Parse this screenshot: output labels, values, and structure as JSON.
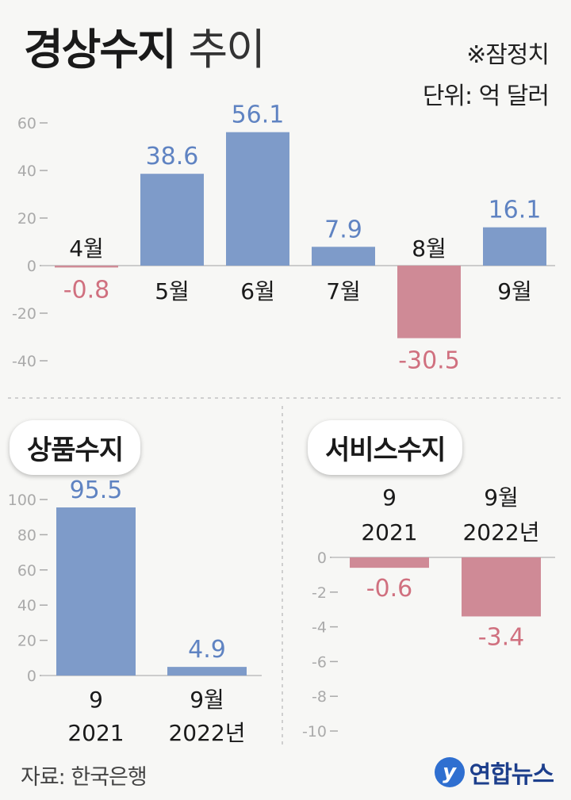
{
  "header": {
    "title_bold": "경상수지",
    "title_light": "추이",
    "note_estimate": "※잠정치",
    "note_unit": "단위: 억 달러"
  },
  "colors": {
    "positive": "#7e9bc9",
    "negative": "#cf8a96",
    "positive_label": "#5f83c2",
    "negative_label": "#d0707f",
    "axis": "#cccccc",
    "tick": "#aaaaaa"
  },
  "panels": {
    "goods_title": "상품수지",
    "services_title": "서비스수지"
  },
  "chart_data": [
    {
      "type": "bar",
      "title": "경상수지 추이",
      "categories": [
        "4월",
        "5월",
        "6월",
        "7월",
        "8월",
        "9월"
      ],
      "values": [
        -0.8,
        38.6,
        56.1,
        7.9,
        -30.5,
        16.1
      ],
      "value_labels": [
        "-0.8",
        "38.6",
        "56.1",
        "7.9",
        "-30.5",
        "16.1"
      ],
      "yticks": [
        "60",
        "40",
        "20",
        "0",
        "-20",
        "-40"
      ],
      "ylim": [
        -40,
        60
      ],
      "grid": false
    },
    {
      "type": "bar",
      "title": "상품수지",
      "categories": [
        [
          "9",
          "2021"
        ],
        [
          "9월",
          "2022년"
        ]
      ],
      "values": [
        95.5,
        4.9
      ],
      "value_labels": [
        "95.5",
        "4.9"
      ],
      "yticks": [
        "100",
        "80",
        "60",
        "40",
        "20",
        "0"
      ],
      "ylim": [
        0,
        100
      ],
      "grid": false
    },
    {
      "type": "bar",
      "title": "서비스수지",
      "categories": [
        [
          "9",
          "2021"
        ],
        [
          "9월",
          "2022년"
        ]
      ],
      "values": [
        -0.6,
        -3.4
      ],
      "value_labels": [
        "-0.6",
        "-3.4"
      ],
      "yticks": [
        "0",
        "-2",
        "-4",
        "-6",
        "-8",
        "-10"
      ],
      "ylim": [
        -10,
        0
      ],
      "grid": false
    }
  ],
  "footer": {
    "source": "자료: 한국은행",
    "logo_mark": "y",
    "logo_text": "연합뉴스"
  }
}
